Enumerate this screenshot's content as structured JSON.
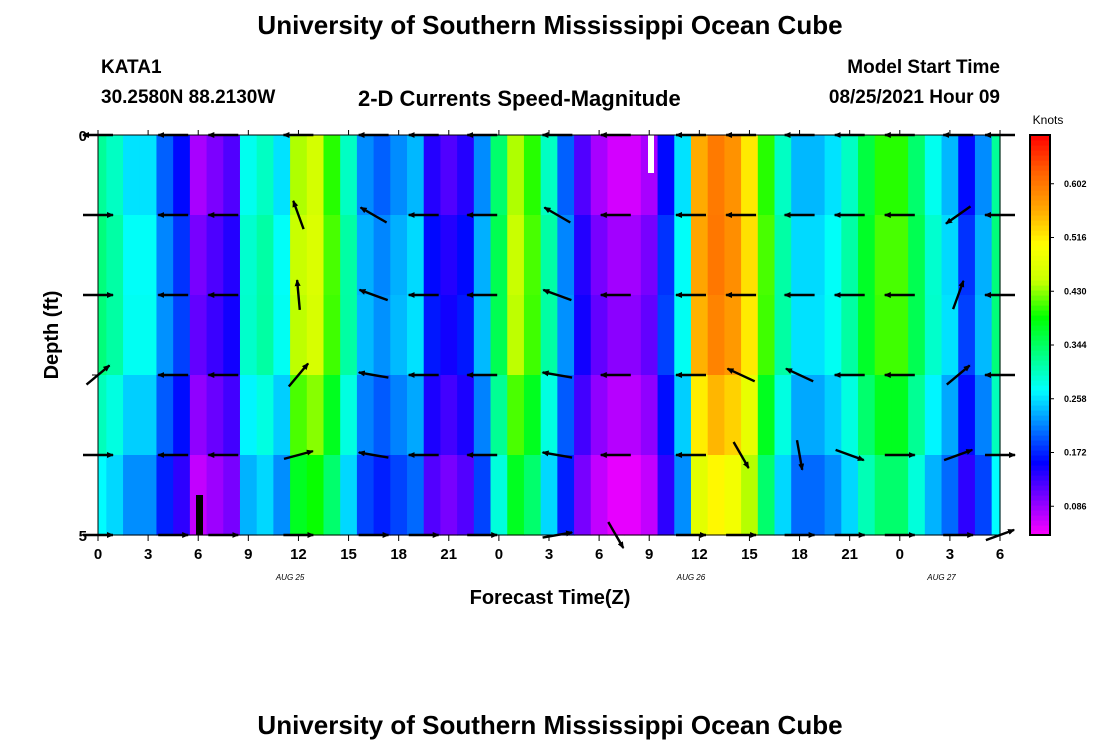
{
  "header": {
    "title": "University of Southern Mississippi Ocean Cube",
    "station": "KATA1",
    "coords": "30.2580N  88.2130W",
    "chart_title": "2-D Currents Speed-Magnitude",
    "model_label": "Model Start Time",
    "model_time": "08/25/2021 Hour 09"
  },
  "footer": {
    "title": "University of Southern Mississippi Ocean Cube"
  },
  "colors": {
    "scale": [
      "#ff00ff",
      "#8000ff",
      "#0000ff",
      "#0080ff",
      "#00ffff",
      "#00ff80",
      "#00ff00",
      "#c8ff00",
      "#ffff00",
      "#ffa500",
      "#ff6000",
      "#ff0000"
    ],
    "arrow": "#000000"
  },
  "chart_data": {
    "type": "heatmap",
    "title": "2-D Currents Speed-Magnitude",
    "xlabel": "Forecast Time(Z)",
    "ylabel": "Depth (ft)",
    "x_ticks": [
      "0",
      "3",
      "6",
      "9",
      "12",
      "15",
      "18",
      "21",
      "0",
      "3",
      "6",
      "9",
      "12",
      "15",
      "18",
      "21",
      "0",
      "3",
      "6"
    ],
    "date_labels": [
      {
        "label": "AUG 25",
        "hour": 11.5
      },
      {
        "label": "AUG 26",
        "hour": 35.5
      },
      {
        "label": "AUG 27",
        "hour": 50.5
      }
    ],
    "y_ticks": [
      "0",
      "5"
    ],
    "ylim": [
      0,
      5
    ],
    "xlim": [
      0,
      54
    ],
    "colorbar": {
      "label": "Knots",
      "ticks": [
        "0.086",
        "0.172",
        "0.258",
        "0.344",
        "0.430",
        "0.516",
        "0.602"
      ],
      "range": [
        0.04,
        0.68
      ]
    },
    "depth_profile": [
      0.0,
      0.1,
      0.15,
      0.08,
      0.0,
      -0.05
    ],
    "time_profile": [
      0.32,
      0.3,
      0.26,
      0.26,
      0.2,
      0.16,
      0.08,
      0.1,
      0.12,
      0.28,
      0.3,
      0.26,
      0.44,
      0.46,
      0.4,
      0.3,
      0.22,
      0.2,
      0.22,
      0.24,
      0.14,
      0.12,
      0.14,
      0.22,
      0.34,
      0.44,
      0.4,
      0.3,
      0.2,
      0.12,
      0.08,
      0.06,
      0.06,
      0.08,
      0.16,
      0.26,
      0.56,
      0.6,
      0.58,
      0.52,
      0.4,
      0.3,
      0.24,
      0.24,
      0.26,
      0.3,
      0.36,
      0.4,
      0.4,
      0.34,
      0.28,
      0.24,
      0.16,
      0.22,
      0.32
    ],
    "vectors": {
      "hours": [
        0,
        4.5,
        7.5,
        12,
        16.5,
        19.5,
        23,
        27.5,
        31,
        35.5,
        38.5,
        42,
        45,
        48,
        51.5,
        54
      ],
      "depth_levels": [
        0,
        1,
        2,
        3,
        4,
        5
      ],
      "angles_deg": [
        [
          180,
          180,
          180,
          180,
          180,
          180,
          180,
          180,
          180,
          180,
          180,
          180,
          180,
          180,
          180,
          180
        ],
        [
          0,
          180,
          180,
          110,
          150,
          180,
          180,
          150,
          180,
          180,
          180,
          180,
          180,
          180,
          215,
          180
        ],
        [
          0,
          180,
          180,
          95,
          160,
          180,
          180,
          160,
          180,
          180,
          180,
          180,
          180,
          180,
          70,
          180
        ],
        [
          40,
          180,
          180,
          50,
          170,
          180,
          180,
          170,
          180,
          180,
          155,
          155,
          180,
          180,
          40,
          180
        ],
        [
          0,
          180,
          180,
          15,
          170,
          180,
          180,
          170,
          180,
          180,
          300,
          280,
          340,
          0,
          20,
          0
        ],
        [
          0,
          0,
          0,
          0,
          0,
          0,
          0,
          10,
          300,
          0,
          0,
          0,
          0,
          0,
          0,
          20
        ]
      ]
    }
  }
}
